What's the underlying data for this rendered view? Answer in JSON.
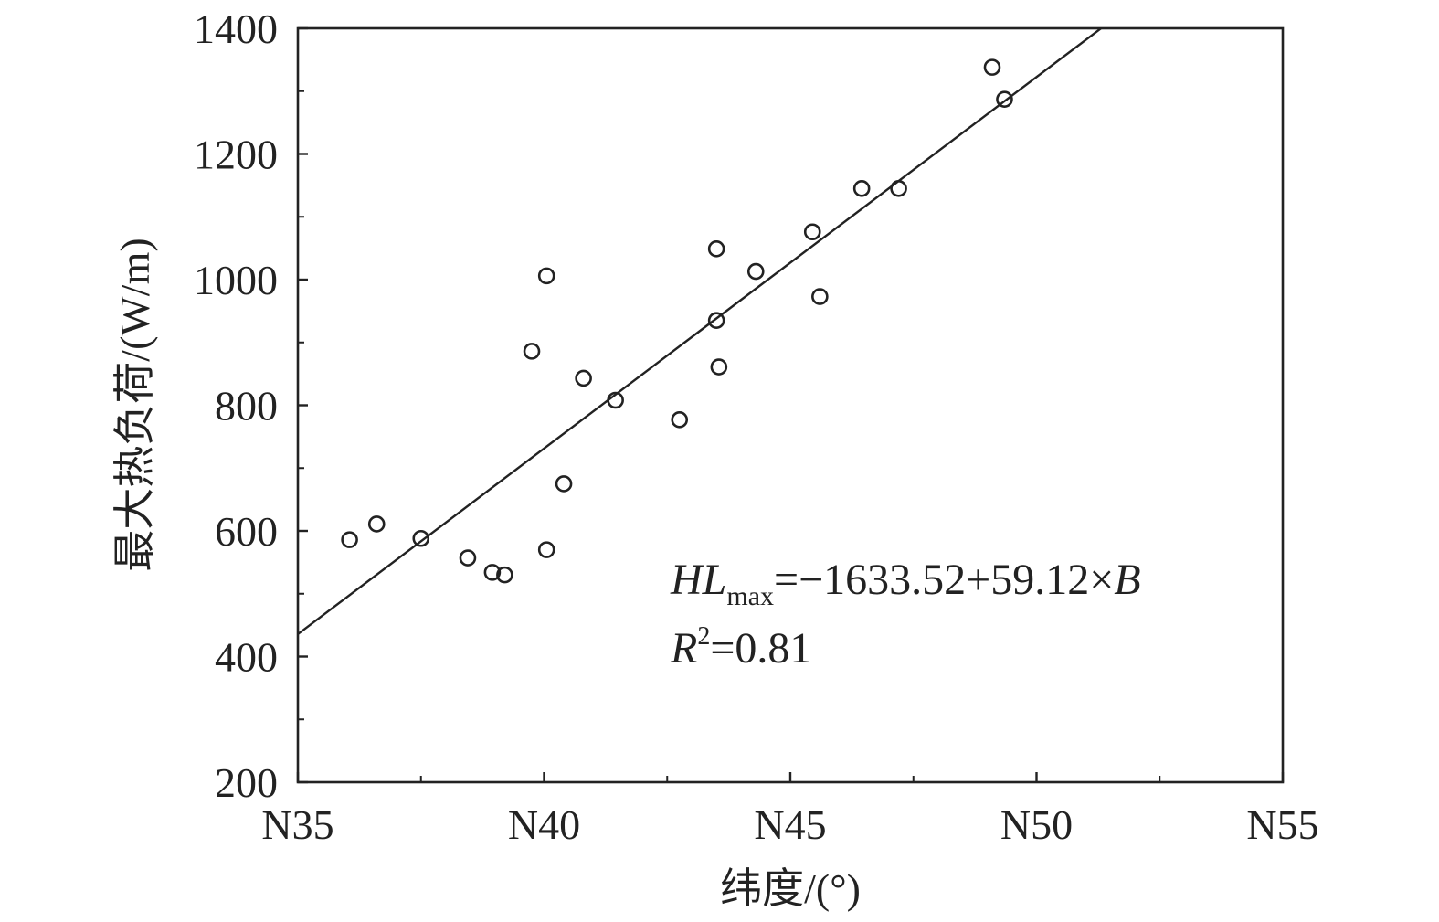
{
  "chart_data": {
    "type": "scatter",
    "xlabel": "纬度/(°)",
    "ylabel": "最大热负荷/(W/m)",
    "xlim": [
      35,
      55
    ],
    "ylim": [
      200,
      1400
    ],
    "x_ticks": [
      35,
      40,
      45,
      50,
      55
    ],
    "x_tick_labels": [
      "N35",
      "N40",
      "N45",
      "N50",
      "N55"
    ],
    "y_ticks": [
      200,
      400,
      600,
      800,
      1000,
      1200,
      1400
    ],
    "y_tick_labels": [
      "200",
      "400",
      "600",
      "800",
      "1000",
      "1200",
      "1400"
    ],
    "grid": false,
    "points": [
      {
        "x": 36.05,
        "y": 586
      },
      {
        "x": 36.6,
        "y": 611
      },
      {
        "x": 37.5,
        "y": 588
      },
      {
        "x": 38.45,
        "y": 557
      },
      {
        "x": 38.95,
        "y": 534
      },
      {
        "x": 39.2,
        "y": 530
      },
      {
        "x": 39.75,
        "y": 886
      },
      {
        "x": 40.05,
        "y": 1006
      },
      {
        "x": 40.05,
        "y": 570
      },
      {
        "x": 40.4,
        "y": 675
      },
      {
        "x": 40.8,
        "y": 843
      },
      {
        "x": 41.45,
        "y": 808
      },
      {
        "x": 42.75,
        "y": 777
      },
      {
        "x": 43.5,
        "y": 1049
      },
      {
        "x": 43.5,
        "y": 935
      },
      {
        "x": 43.55,
        "y": 861
      },
      {
        "x": 44.3,
        "y": 1013
      },
      {
        "x": 45.45,
        "y": 1076
      },
      {
        "x": 45.6,
        "y": 973
      },
      {
        "x": 46.45,
        "y": 1145
      },
      {
        "x": 47.2,
        "y": 1145
      },
      {
        "x": 49.1,
        "y": 1338
      },
      {
        "x": 49.35,
        "y": 1287
      }
    ],
    "fit": {
      "intercept": -1633.52,
      "slope": 59.12
    },
    "annotation": {
      "eq_lhs_main": "HL",
      "eq_lhs_sub": "max",
      "eq_rhs": "=−1633.52+59.12×",
      "eq_var": "B",
      "r2_main": "R",
      "r2_sup": "2",
      "r2_rhs": "=0.81"
    }
  }
}
